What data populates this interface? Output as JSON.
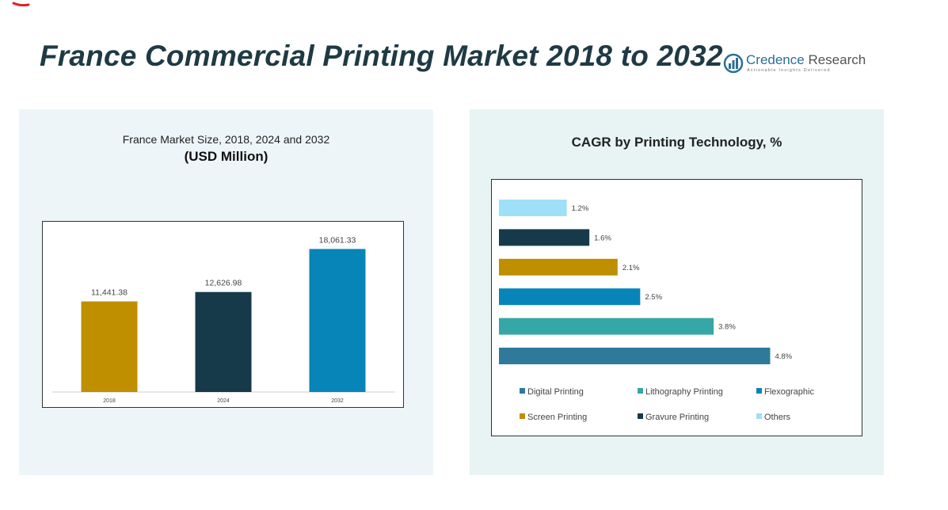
{
  "page": {
    "title": "France Commercial Printing Market 2018 to 2032"
  },
  "brand": {
    "name_a": "Credence",
    "name_b": " Research",
    "tagline": "Actionable Insights Delivered"
  },
  "chart_data": [
    {
      "type": "bar",
      "title": "France Market Size, 2018, 2024 and 2032",
      "subtitle": "(USD Million)",
      "categories": [
        "2018",
        "2024",
        "2032"
      ],
      "values": [
        11441.38,
        12626.98,
        18061.33
      ],
      "value_labels": [
        "11,441.38",
        "12,626.98",
        "18,061.33"
      ],
      "colors": [
        "#bf8f00",
        "#163a4a",
        "#0885b8"
      ],
      "ylim": [
        0,
        20000
      ],
      "grid": false,
      "legend": "none"
    },
    {
      "type": "bar",
      "orientation": "horizontal",
      "title": "CAGR by Printing Technology, %",
      "categories": [
        "Others",
        "Gravure Printing",
        "Screen Printing",
        "Flexographic",
        "Lithography Printing",
        "Digital Printing"
      ],
      "values": [
        1.2,
        1.6,
        2.1,
        2.5,
        3.8,
        4.8
      ],
      "value_labels": [
        "1.2%",
        "1.6%",
        "2.1%",
        "2.5%",
        "3.8%",
        "4.8%"
      ],
      "colors": [
        "#9ee0f7",
        "#163a4a",
        "#bf8f00",
        "#0885b8",
        "#35a7a6",
        "#2f7a9b"
      ],
      "xlim": [
        0,
        5.2
      ],
      "grid": false,
      "legend": "bottom",
      "legend_items": [
        {
          "label": "Digital Printing",
          "color": "#2f7a9b"
        },
        {
          "label": "Lithography Printing",
          "color": "#35a7a6"
        },
        {
          "label": "Flexographic",
          "color": "#0885b8"
        },
        {
          "label": "Screen Printing",
          "color": "#bf8f00"
        },
        {
          "label": "Gravure Printing",
          "color": "#163a4a"
        },
        {
          "label": "Others",
          "color": "#9ee0f7"
        }
      ]
    }
  ]
}
